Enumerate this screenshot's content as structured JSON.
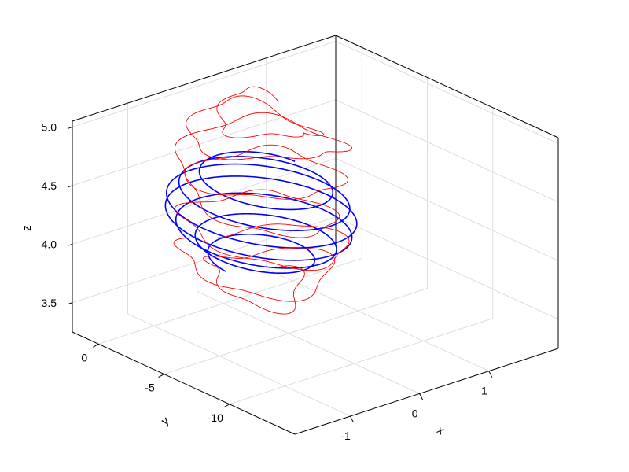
{
  "chart_data": {
    "type": "line",
    "title": "",
    "projection": "3d",
    "grid": true,
    "axes": {
      "x": {
        "label": "x",
        "ticks": [
          -1,
          0,
          1
        ],
        "tick_labels": [
          "-1",
          "0",
          "1"
        ],
        "range": [
          -1.8,
          2.0
        ]
      },
      "y": {
        "label": "y",
        "ticks": [
          0,
          -5,
          -10
        ],
        "tick_labels": [
          "0",
          "-5",
          "-10"
        ],
        "range": [
          -15.0,
          2.0
        ]
      },
      "z": {
        "label": "z",
        "ticks": [
          3.5,
          4.0,
          4.5,
          5.0
        ],
        "tick_labels": [
          "3.5",
          "4.0",
          "4.5",
          "5.0"
        ],
        "range": [
          3.25,
          5.05
        ]
      }
    },
    "series": [
      {
        "color": "#0000ff",
        "line_width": 1.6,
        "shape": "helix",
        "center": [
          0.35,
          -1.0
        ],
        "radius": 1.0,
        "z_range": [
          3.6,
          4.35
        ],
        "turns": 6.5
      },
      {
        "color": "#ff0000",
        "line_width": 0.9,
        "shape": "helix-with-excursions",
        "center": [
          0.3,
          -1.3
        ],
        "radius": 0.85,
        "z_range": [
          3.3,
          5.0
        ],
        "turns": 7
      }
    ],
    "colors": {
      "axes": "#000000",
      "grid": "#dddddd",
      "background": "#ffffff"
    }
  }
}
